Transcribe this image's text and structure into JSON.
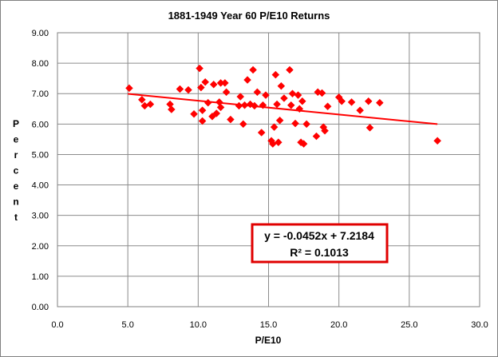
{
  "chart_data": {
    "type": "scatter",
    "title": "1881-1949 Year 60 P/E10 Returns",
    "xlabel": "P/E10",
    "ylabel": "Percent",
    "xlim": [
      0,
      30
    ],
    "ylim": [
      0,
      9
    ],
    "x_ticks": [
      "0.0",
      "5.0",
      "10.0",
      "15.0",
      "20.0",
      "25.0",
      "30.0"
    ],
    "y_ticks": [
      "0.00",
      "1.00",
      "2.00",
      "3.00",
      "4.00",
      "5.00",
      "6.00",
      "7.00",
      "8.00",
      "9.00"
    ],
    "grid": true,
    "legend": "none",
    "marker_color": "#ff0000",
    "trendline": {
      "slope": -0.0452,
      "intercept": 7.2184,
      "x_range": [
        5.0,
        27.0
      ],
      "color": "#ff0000",
      "equation": "y = -0.0452x + 7.2184",
      "r_squared": "R² = 0.1013",
      "box_border_color": "#e00000"
    },
    "points": [
      {
        "x": 5.1,
        "y": 7.18
      },
      {
        "x": 6.0,
        "y": 6.8
      },
      {
        "x": 6.2,
        "y": 6.6
      },
      {
        "x": 6.6,
        "y": 6.65
      },
      {
        "x": 8.0,
        "y": 6.65
      },
      {
        "x": 8.1,
        "y": 6.48
      },
      {
        "x": 8.7,
        "y": 7.15
      },
      {
        "x": 9.3,
        "y": 7.12
      },
      {
        "x": 9.7,
        "y": 6.33
      },
      {
        "x": 10.1,
        "y": 7.83
      },
      {
        "x": 10.2,
        "y": 7.2
      },
      {
        "x": 10.3,
        "y": 6.45
      },
      {
        "x": 10.3,
        "y": 6.1
      },
      {
        "x": 10.5,
        "y": 7.38
      },
      {
        "x": 10.7,
        "y": 6.7
      },
      {
        "x": 11.0,
        "y": 6.25
      },
      {
        "x": 11.1,
        "y": 7.3
      },
      {
        "x": 11.3,
        "y": 6.35
      },
      {
        "x": 11.5,
        "y": 6.72
      },
      {
        "x": 11.6,
        "y": 7.35
      },
      {
        "x": 11.6,
        "y": 6.55
      },
      {
        "x": 11.9,
        "y": 7.35
      },
      {
        "x": 12.0,
        "y": 7.05
      },
      {
        "x": 12.3,
        "y": 6.15
      },
      {
        "x": 12.9,
        "y": 6.6
      },
      {
        "x": 13.0,
        "y": 6.9
      },
      {
        "x": 13.2,
        "y": 6.0
      },
      {
        "x": 13.3,
        "y": 6.62
      },
      {
        "x": 13.5,
        "y": 7.45
      },
      {
        "x": 13.7,
        "y": 6.65
      },
      {
        "x": 13.9,
        "y": 7.78
      },
      {
        "x": 14.0,
        "y": 6.6
      },
      {
        "x": 14.2,
        "y": 7.05
      },
      {
        "x": 14.5,
        "y": 5.72
      },
      {
        "x": 14.6,
        "y": 6.62
      },
      {
        "x": 14.8,
        "y": 6.95
      },
      {
        "x": 15.2,
        "y": 5.45
      },
      {
        "x": 15.3,
        "y": 5.35
      },
      {
        "x": 15.4,
        "y": 5.9
      },
      {
        "x": 15.5,
        "y": 7.62
      },
      {
        "x": 15.6,
        "y": 6.65
      },
      {
        "x": 15.7,
        "y": 5.4
      },
      {
        "x": 15.8,
        "y": 6.12
      },
      {
        "x": 15.9,
        "y": 7.25
      },
      {
        "x": 16.1,
        "y": 6.85
      },
      {
        "x": 16.5,
        "y": 7.78
      },
      {
        "x": 16.6,
        "y": 6.62
      },
      {
        "x": 16.7,
        "y": 7.0
      },
      {
        "x": 16.9,
        "y": 6.02
      },
      {
        "x": 17.1,
        "y": 6.95
      },
      {
        "x": 17.2,
        "y": 6.5
      },
      {
        "x": 17.3,
        "y": 5.4
      },
      {
        "x": 17.4,
        "y": 6.75
      },
      {
        "x": 17.5,
        "y": 5.35
      },
      {
        "x": 17.7,
        "y": 6.0
      },
      {
        "x": 18.4,
        "y": 5.6
      },
      {
        "x": 18.5,
        "y": 7.05
      },
      {
        "x": 18.8,
        "y": 7.02
      },
      {
        "x": 18.9,
        "y": 5.9
      },
      {
        "x": 19.0,
        "y": 5.78
      },
      {
        "x": 19.2,
        "y": 6.58
      },
      {
        "x": 20.0,
        "y": 6.88
      },
      {
        "x": 20.2,
        "y": 6.75
      },
      {
        "x": 20.9,
        "y": 6.72
      },
      {
        "x": 21.5,
        "y": 6.45
      },
      {
        "x": 22.1,
        "y": 6.75
      },
      {
        "x": 22.2,
        "y": 5.88
      },
      {
        "x": 22.9,
        "y": 6.7
      },
      {
        "x": 27.0,
        "y": 5.45
      }
    ]
  }
}
